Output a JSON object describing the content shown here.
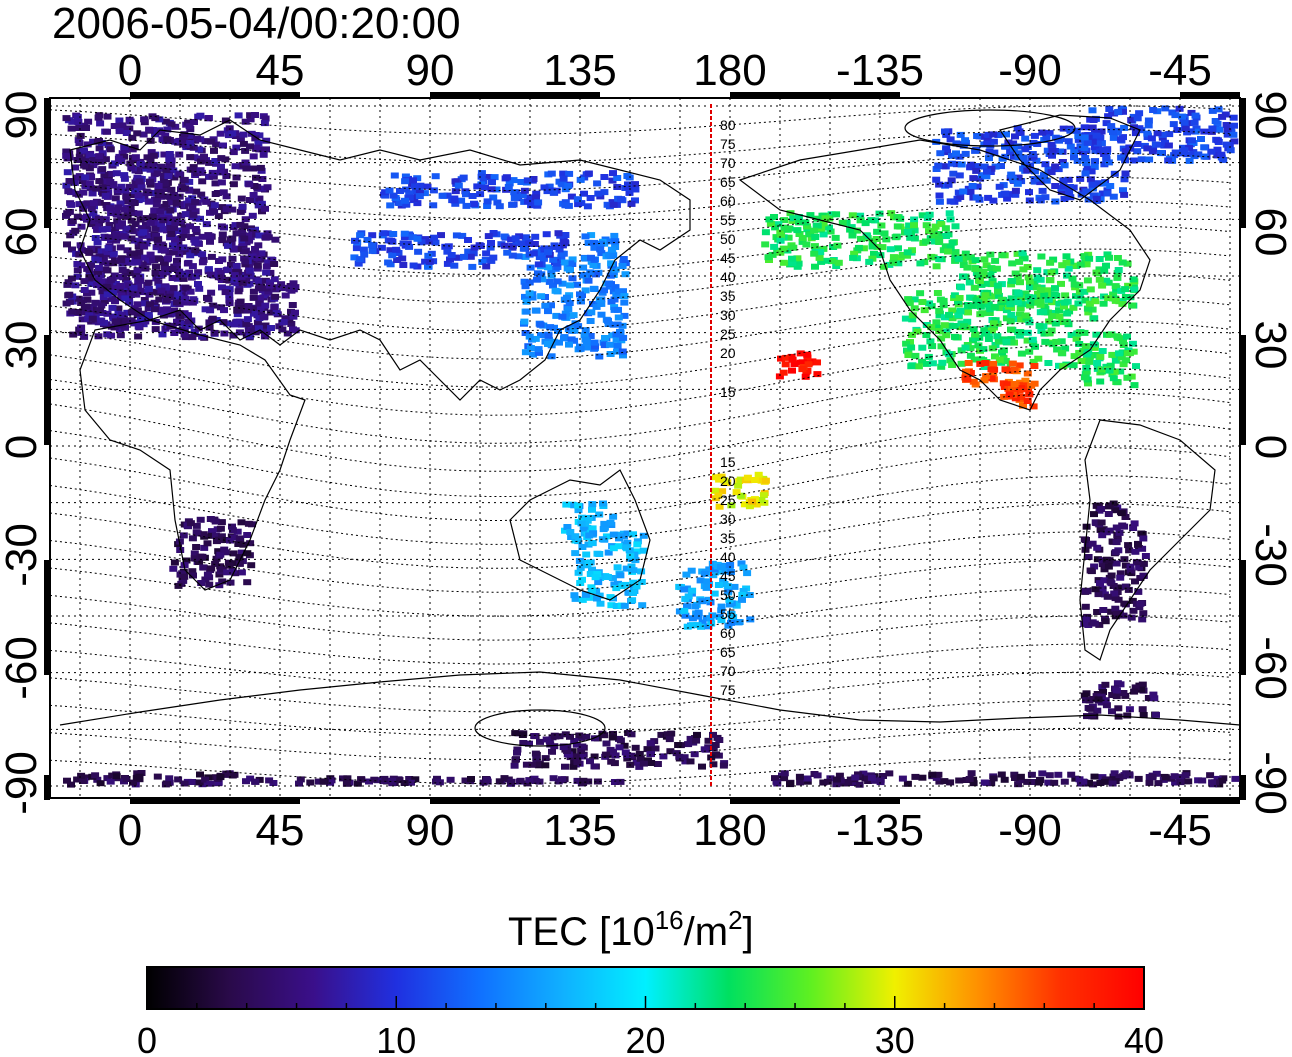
{
  "title": "2006-05-04/00:20:00",
  "map": {
    "lon_tick_labels": [
      "0",
      "45",
      "90",
      "135",
      "180",
      "-135",
      "-90",
      "-45"
    ],
    "lat_tick_labels": [
      "90",
      "60",
      "30",
      "0",
      "-30",
      "-60",
      "-90"
    ],
    "dateline_labels_north": [
      "80",
      "75",
      "70",
      "65",
      "60",
      "55",
      "50",
      "45",
      "40",
      "35",
      "30",
      "25",
      "20",
      "15"
    ],
    "dateline_labels_south": [
      "15",
      "20",
      "25",
      "30",
      "35",
      "40",
      "45",
      "50",
      "55",
      "60",
      "65",
      "70",
      "75"
    ],
    "dateline_color": "#e00000"
  },
  "colorbar": {
    "label_main": "TEC  [10",
    "label_sup1": "16",
    "label_mid": "/m",
    "label_sup2": "2",
    "label_end": "]",
    "min": 0,
    "max": 40,
    "tick_labels": [
      "0",
      "10",
      "20",
      "30",
      "40"
    ],
    "stops": [
      "#000000",
      "#2a0a4a",
      "#3a0f8a",
      "#2030e0",
      "#1070ff",
      "#10b0ff",
      "#00f0ff",
      "#00e060",
      "#60f020",
      "#f0f000",
      "#ff9000",
      "#ff3000",
      "#ff0000"
    ]
  },
  "tec_regions": [
    {
      "name": "europe",
      "value": 6
    },
    {
      "name": "north-america",
      "value": 24
    },
    {
      "name": "mexico-caribbean",
      "value": 36
    },
    {
      "name": "east-asia",
      "value": 14
    },
    {
      "name": "australia",
      "value": 17
    },
    {
      "name": "new-zealand",
      "value": 16
    },
    {
      "name": "south-pacific",
      "value": 30
    },
    {
      "name": "hawaii",
      "value": 39
    },
    {
      "name": "south-africa",
      "value": 4
    },
    {
      "name": "south-america",
      "value": 4
    },
    {
      "name": "antarctica",
      "value": 4
    },
    {
      "name": "siberia",
      "value": 11
    },
    {
      "name": "greenland-canada",
      "value": 11
    }
  ]
}
